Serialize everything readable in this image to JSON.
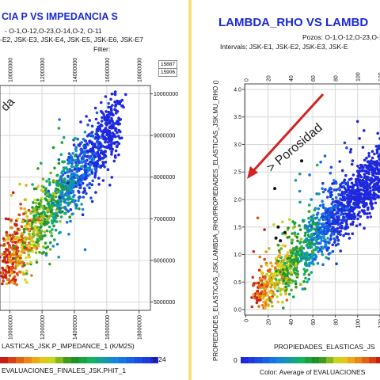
{
  "colors": {
    "title": "#1a2ad0",
    "panel_border": "#d9c452",
    "annotation_arrow": "#d22222"
  },
  "left": {
    "title": "CIA P VS IMPEDANCIA S",
    "wells_line": "- O-1,O-12,O-23,O-14,O-2, O-11",
    "intervals_line": "-E2, JSK-E3, JSK-E4, JSK-E5, JSK-E6, JSK-E7",
    "filter_label": "Filter:",
    "count_top": "15887",
    "count_bottom": "15906",
    "rotated_note": "da",
    "xlabel": "LASTICAS_JSK.P_IMPEDANCE_1 (K/M2S)",
    "colorbar_max": "0.24",
    "color_label": "EVALUACIONES_FINALES_JSK.PHIT_1"
  },
  "right": {
    "title": "LAMBDA_RHO VS LAMBD",
    "wells_line": "Pozos:  O-1,O-12,O-23,O-1",
    "intervals_line": "Intervals: JSK-E1, JSK-E2, JSK-E3, JSK-E",
    "ylabel": "PROPIEDADES_ELASTICAS_JSK.LAMBDA_RHO/PROPIEDADES_ELASTICAS_JSK.MU_RHO ()",
    "xlabel": "PROPIEDADES_ELASTICAS_JS",
    "annotation": "> Porosidad",
    "colorbar_min": "0",
    "color_label": "Color:  Average of EVALUACIONES"
  },
  "chart_data": [
    {
      "type": "scatter",
      "title": "IMPEDANCIA P VS IMPEDANCIA S",
      "xlabel": "LASTICAS_JSK.P_IMPEDANCE_1 (K/M2S)",
      "x_tick_labels": [
        "10000000",
        "12000000",
        "14000000",
        "16000000",
        "18000000"
      ],
      "y_tick_labels": [
        "5000000",
        "6000000",
        "7000000",
        "8000000",
        "9000000",
        "10000000"
      ],
      "xlim": [
        9400000,
        18700000
      ],
      "ylim": [
        4800000,
        10200000
      ],
      "grid": true,
      "color_variable": "EVALUACIONES_FINALES_JSK.PHIT_1",
      "color_range": [
        0,
        0.24
      ],
      "cluster": {
        "x_range": [
          10000000,
          17000000
        ],
        "y_range": [
          5500000,
          9900000
        ],
        "trend": "positive, high-impedance points blue, low-impedance points green/yellow/red"
      }
    },
    {
      "type": "scatter",
      "title": "LAMBDA_RHO VS LAMBDA_RHO/MU_RHO",
      "ylabel": "PROPIEDADES_ELASTICAS_JSK.LAMBDA_RHO/PROPIEDADES_ELASTICAS_JSK.MU_RHO ()",
      "xlabel": "PROPIEDADES_ELASTICAS_JS",
      "x_tick_labels": [
        "0",
        "20",
        "40",
        "60",
        "80",
        "100",
        "120"
      ],
      "y_tick_labels": [
        "0.0",
        "0.5",
        "1.0",
        "1.5",
        "2.0",
        "2.5",
        "3.0",
        "3.5",
        "4.0"
      ],
      "xlim": [
        -1,
        125
      ],
      "ylim": [
        -0.1,
        4.1
      ],
      "grid": true,
      "annotation": "> Porosidad",
      "color_variable": "Average of EVALUACIONES",
      "color_range_low": 0,
      "cluster": {
        "x_range": [
          5,
          125
        ],
        "y_range": [
          0.1,
          3.5
        ],
        "trend": "positive, low-x points red/orange (high porosity), high-x points blue"
      }
    }
  ]
}
